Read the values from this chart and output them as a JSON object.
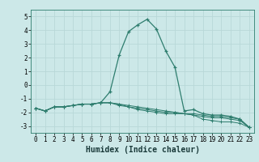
{
  "xlabel": "Humidex (Indice chaleur)",
  "background_color": "#cce8e8",
  "grid_color": "#b8d8d8",
  "line_color": "#2e7d6e",
  "x": [
    0,
    1,
    2,
    3,
    4,
    5,
    6,
    7,
    8,
    9,
    10,
    11,
    12,
    13,
    14,
    15,
    16,
    17,
    18,
    19,
    20,
    21,
    22,
    23
  ],
  "line1": [
    -1.7,
    -1.9,
    -1.6,
    -1.6,
    -1.5,
    -1.4,
    -1.4,
    -1.3,
    -0.5,
    2.2,
    3.9,
    4.4,
    4.8,
    4.1,
    2.5,
    1.3,
    -1.9,
    -1.8,
    -2.1,
    -2.2,
    -2.2,
    -2.3,
    -2.5,
    -3.1
  ],
  "line2": [
    -1.7,
    -1.9,
    -1.6,
    -1.6,
    -1.5,
    -1.4,
    -1.4,
    -1.3,
    -1.3,
    -1.4,
    -1.5,
    -1.6,
    -1.7,
    -1.8,
    -1.9,
    -2.0,
    -2.1,
    -2.1,
    -2.2,
    -2.3,
    -2.3,
    -2.4,
    -2.5,
    -3.1
  ],
  "line3": [
    -1.7,
    -1.9,
    -1.6,
    -1.6,
    -1.5,
    -1.4,
    -1.4,
    -1.3,
    -1.3,
    -1.4,
    -1.6,
    -1.7,
    -1.8,
    -1.9,
    -2.0,
    -2.0,
    -2.1,
    -2.2,
    -2.3,
    -2.4,
    -2.4,
    -2.5,
    -2.6,
    -3.1
  ],
  "line4": [
    -1.7,
    -1.9,
    -1.6,
    -1.6,
    -1.5,
    -1.4,
    -1.4,
    -1.3,
    -1.3,
    -1.5,
    -1.6,
    -1.8,
    -1.9,
    -2.0,
    -2.1,
    -2.1,
    -2.1,
    -2.2,
    -2.5,
    -2.6,
    -2.7,
    -2.7,
    -2.8,
    -3.1
  ],
  "ylim": [
    -3.5,
    5.5
  ],
  "yticks": [
    -3,
    -2,
    -1,
    0,
    1,
    2,
    3,
    4,
    5
  ],
  "title_fontsize": 7,
  "xlabel_fontsize": 7,
  "tick_fontsize": 5.5
}
